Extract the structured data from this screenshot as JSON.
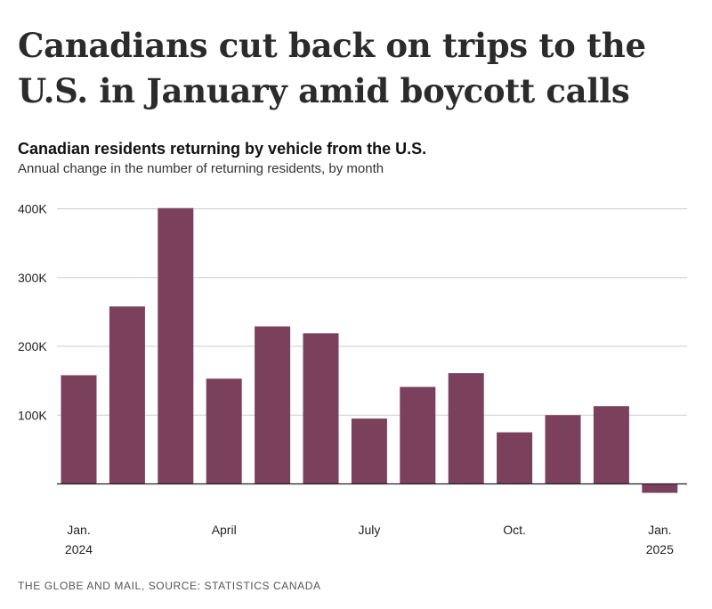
{
  "headline": "Canadians cut back on trips to the U.S. in January amid boycott calls",
  "source": "THE GLOBE AND MAIL, SOURCE: STATISTICS CANADA",
  "colors": {
    "bar": "#7a405c",
    "grid": "#cccccc",
    "axis": "#222222"
  },
  "chart_data": {
    "type": "bar",
    "title": "Canadian residents returning by vehicle from the U.S.",
    "subtitle": "Annual change in the number of returning residents, by month",
    "xlabel": "",
    "ylabel": "",
    "ylim": [
      -15000,
      400000
    ],
    "grid": true,
    "yticks": [
      {
        "value": 100000,
        "label": "100K"
      },
      {
        "value": 200000,
        "label": "200K"
      },
      {
        "value": 300000,
        "label": "300K"
      },
      {
        "value": 400000,
        "label": "400K"
      }
    ],
    "x_tick_labels": [
      {
        "index": 0,
        "lines": [
          "Jan.",
          "2024"
        ]
      },
      {
        "index": 3,
        "lines": [
          "April"
        ]
      },
      {
        "index": 6,
        "lines": [
          "July"
        ]
      },
      {
        "index": 9,
        "lines": [
          "Oct."
        ]
      },
      {
        "index": 12,
        "lines": [
          "Jan.",
          "2025"
        ]
      }
    ],
    "categories": [
      "Jan 2024",
      "Feb 2024",
      "Mar 2024",
      "Apr 2024",
      "May 2024",
      "Jun 2024",
      "Jul 2024",
      "Aug 2024",
      "Sep 2024",
      "Oct 2024",
      "Nov 2024",
      "Dec 2024",
      "Jan 2025"
    ],
    "values": [
      158000,
      258000,
      401000,
      153000,
      229000,
      219000,
      95000,
      141000,
      161000,
      75000,
      100000,
      113000,
      -13000
    ]
  }
}
